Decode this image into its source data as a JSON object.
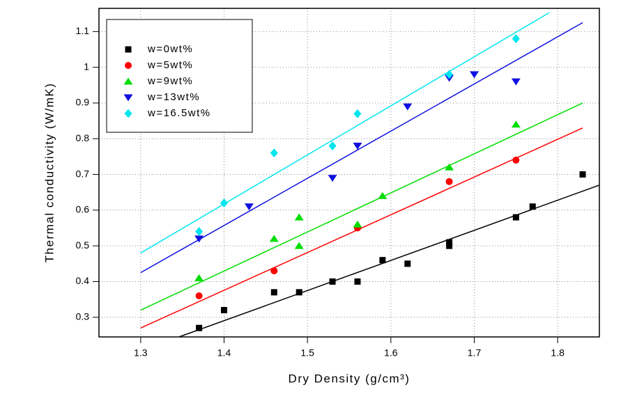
{
  "chart_data": {
    "type": "scatter",
    "xlabel": "Dry Density (g/cm³)",
    "ylabel": "Thermal conductivity (W/mK)",
    "xlim": [
      1.25,
      1.85
    ],
    "ylim": [
      0.245,
      1.165
    ],
    "xticks": [
      1.3,
      1.4,
      1.5,
      1.6,
      1.7,
      1.8
    ],
    "yticks": [
      0.3,
      0.4,
      0.5,
      0.6,
      0.7,
      0.8,
      0.9,
      1.0,
      1.1
    ],
    "grid": true,
    "legend": "upper left",
    "series": [
      {
        "name": "w=0wt%",
        "color": "#000000",
        "marker": "square",
        "x": [
          1.37,
          1.4,
          1.46,
          1.49,
          1.53,
          1.56,
          1.59,
          1.62,
          1.67,
          1.67,
          1.75,
          1.77,
          1.83
        ],
        "values": [
          0.27,
          0.32,
          0.37,
          0.37,
          0.4,
          0.4,
          0.46,
          0.45,
          0.5,
          0.51,
          0.58,
          0.61,
          0.7
        ],
        "fit": {
          "x": [
            1.346,
            1.85
          ],
          "values": [
            0.245,
            0.67
          ]
        }
      },
      {
        "name": "w=5wt%",
        "color": "#ff0000",
        "marker": "circle",
        "x": [
          1.37,
          1.46,
          1.56,
          1.67,
          1.75
        ],
        "values": [
          0.36,
          0.43,
          0.55,
          0.68,
          0.74
        ],
        "fit": {
          "x": [
            1.3,
            1.83
          ],
          "values": [
            0.27,
            0.83
          ]
        }
      },
      {
        "name": "w=9wt%",
        "color": "#00dd00",
        "marker": "triangle-up",
        "x": [
          1.37,
          1.46,
          1.49,
          1.49,
          1.56,
          1.59,
          1.67,
          1.75
        ],
        "values": [
          0.41,
          0.52,
          0.58,
          0.5,
          0.56,
          0.64,
          0.72,
          0.84
        ],
        "fit": {
          "x": [
            1.3,
            1.83
          ],
          "values": [
            0.32,
            0.9
          ]
        }
      },
      {
        "name": "w=13wt%",
        "color": "#1010e0",
        "marker": "triangle-down",
        "x": [
          1.37,
          1.43,
          1.53,
          1.56,
          1.62,
          1.67,
          1.7,
          1.75
        ],
        "values": [
          0.52,
          0.61,
          0.69,
          0.78,
          0.89,
          0.97,
          0.98,
          0.96
        ],
        "fit": {
          "x": [
            1.3,
            1.83
          ],
          "values": [
            0.425,
            1.125
          ]
        }
      },
      {
        "name": "w=16.5wt%",
        "color": "#00e5ee",
        "marker": "diamond",
        "x": [
          1.37,
          1.4,
          1.46,
          1.53,
          1.56,
          1.67,
          1.75
        ],
        "values": [
          0.54,
          0.62,
          0.76,
          0.78,
          0.87,
          0.98,
          1.08
        ],
        "fit": {
          "x": [
            1.3,
            1.79
          ],
          "values": [
            0.48,
            1.153
          ]
        }
      }
    ]
  }
}
